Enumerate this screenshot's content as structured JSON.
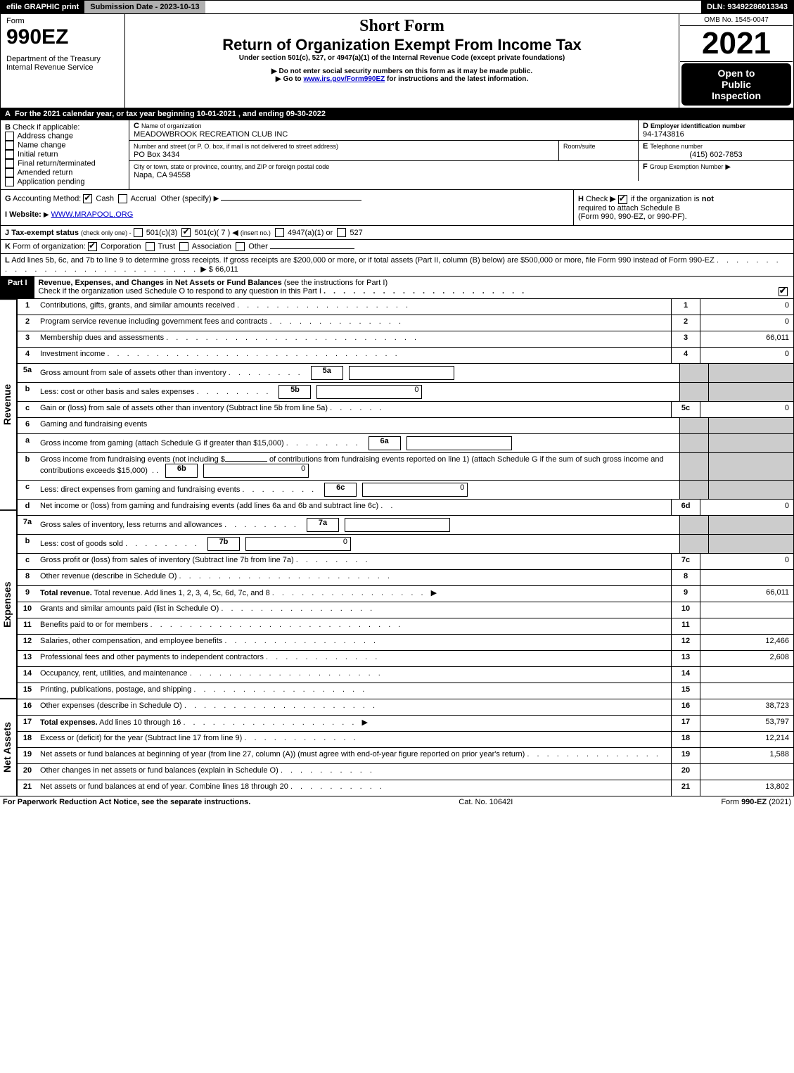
{
  "topbar": {
    "efile": "efile GRAPHIC print",
    "submission_label": "Submission Date - 2023-10-13",
    "dln_label": "DLN: 93492286013343"
  },
  "header": {
    "form_word": "Form",
    "form_num": "990EZ",
    "dept1": "Department of the Treasury",
    "dept2": "Internal Revenue Service",
    "short_form": "Short Form",
    "title": "Return of Organization Exempt From Income Tax",
    "subtitle": "Under section 501(c), 527, or 4947(a)(1) of the Internal Revenue Code (except private foundations)",
    "note1": "Do not enter social security numbers on this form as it may be made public.",
    "note2_pre": "Go to ",
    "note2_link": "www.irs.gov/Form990EZ",
    "note2_post": " for instructions and the latest information.",
    "omb": "OMB No. 1545-0047",
    "year": "2021",
    "open1": "Open to",
    "open2": "Public",
    "open3": "Inspection"
  },
  "periodA": "For the 2021 calendar year, or tax year beginning 10-01-2021 , and ending 09-30-2022",
  "boxB": {
    "title": "Check if applicable:",
    "items": [
      "Address change",
      "Name change",
      "Initial return",
      "Final return/terminated",
      "Amended return",
      "Application pending"
    ]
  },
  "boxC": {
    "label_name": "Name of organization",
    "org_name": "MEADOWBROOK RECREATION CLUB INC",
    "label_addr": "Number and street (or P. O. box, if mail is not delivered to street address)",
    "label_room": "Room/suite",
    "addr": "PO Box 3434",
    "label_city": "City or town, state or province, country, and ZIP or foreign postal code",
    "city": "Napa, CA  94558"
  },
  "boxD": {
    "label": "Employer identification number",
    "val": "94-1743816"
  },
  "boxE": {
    "label": "Telephone number",
    "val": "(415) 602-7853"
  },
  "boxF": {
    "label": "Group Exemption Number"
  },
  "boxG": {
    "label": "Accounting Method:",
    "opts": [
      "Cash",
      "Accrual"
    ],
    "other": "Other (specify)"
  },
  "boxH": {
    "text1": "Check ▶",
    "text2": "if the organization is",
    "not": "not",
    "text3": "required to attach Schedule B",
    "text4": "(Form 990, 990-EZ, or 990-PF)."
  },
  "boxI": {
    "label": "Website:",
    "val": "WWW.MRAPOOL.ORG"
  },
  "boxJ": {
    "label": "Tax-exempt status",
    "hint": "(check only one) -",
    "opt1": "501(c)(3)",
    "opt2": "501(c)( 7 )",
    "opt2_hint": "(insert no.)",
    "opt3": "4947(a)(1) or",
    "opt4": "527"
  },
  "boxK": {
    "label": "Form of organization:",
    "opts": [
      "Corporation",
      "Trust",
      "Association",
      "Other"
    ]
  },
  "boxL": {
    "text": "Add lines 5b, 6c, and 7b to line 9 to determine gross receipts. If gross receipts are $200,000 or more, or if total assets (Part II, column (B) below) are $500,000 or more, file Form 990 instead of Form 990-EZ",
    "amount": "$ 66,011"
  },
  "part1": {
    "label": "Part I",
    "title": "Revenue, Expenses, and Changes in Net Assets or Fund Balances",
    "title_hint": "(see the instructions for Part I)",
    "check_line": "Check if the organization used Schedule O to respond to any question in this Part I"
  },
  "vert_labels": {
    "revenue": "Revenue",
    "expenses": "Expenses",
    "netassets": "Net Assets"
  },
  "lines": {
    "1": {
      "desc": "Contributions, gifts, grants, and similar amounts received",
      "num": "1",
      "val": "0"
    },
    "2": {
      "desc": "Program service revenue including government fees and contracts",
      "num": "2",
      "val": "0"
    },
    "3": {
      "desc": "Membership dues and assessments",
      "num": "3",
      "val": "66,011"
    },
    "4": {
      "desc": "Investment income",
      "num": "4",
      "val": "0"
    },
    "5a": {
      "desc": "Gross amount from sale of assets other than inventory",
      "in_num": "5a",
      "in_val": ""
    },
    "5b": {
      "desc": "Less: cost or other basis and sales expenses",
      "in_num": "5b",
      "in_val": "0"
    },
    "5c": {
      "desc": "Gain or (loss) from sale of assets other than inventory (Subtract line 5b from line 5a)",
      "num": "5c",
      "val": "0"
    },
    "6": {
      "desc": "Gaming and fundraising events"
    },
    "6a": {
      "desc": "Gross income from gaming (attach Schedule G if greater than $15,000)",
      "in_num": "6a",
      "in_val": ""
    },
    "6b": {
      "desc1": "Gross income from fundraising events (not including $",
      "desc2": "of contributions from fundraising events reported on line 1) (attach Schedule G if the sum of such gross income and contributions exceeds $15,000)",
      "in_num": "6b",
      "in_val": "0"
    },
    "6c": {
      "desc": "Less: direct expenses from gaming and fundraising events",
      "in_num": "6c",
      "in_val": "0"
    },
    "6d": {
      "desc": "Net income or (loss) from gaming and fundraising events (add lines 6a and 6b and subtract line 6c)",
      "num": "6d",
      "val": "0"
    },
    "7a": {
      "desc": "Gross sales of inventory, less returns and allowances",
      "in_num": "7a",
      "in_val": ""
    },
    "7b": {
      "desc": "Less: cost of goods sold",
      "in_num": "7b",
      "in_val": "0"
    },
    "7c": {
      "desc": "Gross profit or (loss) from sales of inventory (Subtract line 7b from line 7a)",
      "num": "7c",
      "val": "0"
    },
    "8": {
      "desc": "Other revenue (describe in Schedule O)",
      "num": "8",
      "val": ""
    },
    "9": {
      "desc": "Total revenue. Add lines 1, 2, 3, 4, 5c, 6d, 7c, and 8",
      "label_bold": "Total revenue.",
      "num": "9",
      "val": "66,011"
    },
    "10": {
      "desc": "Grants and similar amounts paid (list in Schedule O)",
      "num": "10",
      "val": ""
    },
    "11": {
      "desc": "Benefits paid to or for members",
      "num": "11",
      "val": ""
    },
    "12": {
      "desc": "Salaries, other compensation, and employee benefits",
      "num": "12",
      "val": "12,466"
    },
    "13": {
      "desc": "Professional fees and other payments to independent contractors",
      "num": "13",
      "val": "2,608"
    },
    "14": {
      "desc": "Occupancy, rent, utilities, and maintenance",
      "num": "14",
      "val": ""
    },
    "15": {
      "desc": "Printing, publications, postage, and shipping",
      "num": "15",
      "val": ""
    },
    "16": {
      "desc": "Other expenses (describe in Schedule O)",
      "num": "16",
      "val": "38,723"
    },
    "17": {
      "label_bold": "Total expenses.",
      "desc": "Add lines 10 through 16",
      "num": "17",
      "val": "53,797"
    },
    "18": {
      "desc": "Excess or (deficit) for the year (Subtract line 17 from line 9)",
      "num": "18",
      "val": "12,214"
    },
    "19": {
      "desc": "Net assets or fund balances at beginning of year (from line 27, column (A)) (must agree with end-of-year figure reported on prior year's return)",
      "num": "19",
      "val": "1,588"
    },
    "20": {
      "desc": "Other changes in net assets or fund balances (explain in Schedule O)",
      "num": "20",
      "val": ""
    },
    "21": {
      "desc": "Net assets or fund balances at end of year. Combine lines 18 through 20",
      "num": "21",
      "val": "13,802"
    }
  },
  "footer": {
    "left": "For Paperwork Reduction Act Notice, see the separate instructions.",
    "mid": "Cat. No. 10642I",
    "right_pre": "Form ",
    "right_form": "990-EZ",
    "right_post": " (2021)"
  },
  "colors": {
    "black": "#000000",
    "gray_bar": "#b0b0b0",
    "shaded_cell": "#cccccc",
    "link": "#0000cc"
  }
}
